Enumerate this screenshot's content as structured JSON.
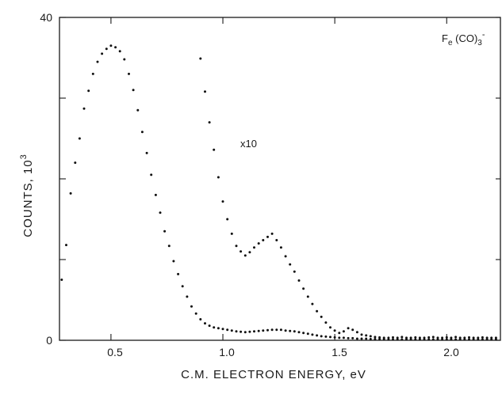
{
  "chart_data": {
    "type": "scatter",
    "xlabel": "C.M. ELECTRON ENERGY, eV",
    "ylabel": "COUNTS, 10",
    "ylabel_superscript": "3",
    "xlim": [
      0.27,
      2.24
    ],
    "ylim": [
      0,
      40
    ],
    "x_tick_labels": [
      "0.5",
      "1.0",
      "1.5",
      "2.0"
    ],
    "x_ticks": [
      0.5,
      1.0,
      1.5,
      2.0
    ],
    "y_tick_labels": [
      "0",
      "40"
    ],
    "y_ticks": [
      0,
      40
    ],
    "y_minor_ticks": [
      10,
      20,
      30
    ],
    "grid": false,
    "annotations": [
      {
        "text": "F",
        "sub": "e",
        "rest": " (CO)",
        "sub2": "3",
        "sup": "-",
        "x": 2.0,
        "y": 38.5
      },
      {
        "text": "x10",
        "x": 0.98,
        "y": 24.6
      }
    ],
    "series": [
      {
        "values": [
          [
            0.28,
            7.5
          ],
          [
            0.3,
            11.8
          ],
          [
            0.32,
            18.2
          ],
          [
            0.34,
            22.0
          ],
          [
            0.36,
            25.0
          ],
          [
            0.38,
            28.7
          ],
          [
            0.4,
            30.9
          ],
          [
            0.42,
            33.0
          ],
          [
            0.44,
            34.5
          ],
          [
            0.46,
            35.5
          ],
          [
            0.48,
            36.1
          ],
          [
            0.5,
            36.5
          ],
          [
            0.52,
            36.3
          ],
          [
            0.54,
            35.8
          ],
          [
            0.56,
            34.8
          ],
          [
            0.58,
            33.0
          ],
          [
            0.6,
            31.0
          ],
          [
            0.62,
            28.5
          ],
          [
            0.64,
            25.8
          ],
          [
            0.66,
            23.2
          ],
          [
            0.68,
            20.5
          ],
          [
            0.7,
            18.0
          ],
          [
            0.72,
            15.8
          ],
          [
            0.74,
            13.5
          ],
          [
            0.76,
            11.7
          ],
          [
            0.78,
            9.8
          ],
          [
            0.8,
            8.2
          ],
          [
            0.82,
            6.7
          ],
          [
            0.84,
            5.4
          ],
          [
            0.86,
            4.2
          ],
          [
            0.88,
            3.3
          ],
          [
            0.9,
            2.6
          ],
          [
            0.92,
            2.1
          ],
          [
            0.94,
            1.8
          ],
          [
            0.96,
            1.6
          ],
          [
            0.98,
            1.5
          ],
          [
            1.0,
            1.4
          ],
          [
            1.02,
            1.3
          ],
          [
            1.04,
            1.2
          ],
          [
            1.06,
            1.1
          ],
          [
            1.08,
            1.05
          ],
          [
            1.1,
            1.0
          ],
          [
            1.12,
            1.05
          ],
          [
            1.14,
            1.1
          ],
          [
            1.16,
            1.15
          ],
          [
            1.18,
            1.2
          ],
          [
            1.2,
            1.25
          ],
          [
            1.22,
            1.3
          ],
          [
            1.24,
            1.3
          ],
          [
            1.26,
            1.3
          ],
          [
            1.28,
            1.2
          ],
          [
            1.3,
            1.15
          ],
          [
            1.32,
            1.1
          ],
          [
            1.34,
            1.0
          ],
          [
            1.36,
            0.9
          ],
          [
            1.38,
            0.8
          ],
          [
            1.4,
            0.7
          ],
          [
            1.42,
            0.6
          ],
          [
            1.44,
            0.5
          ],
          [
            1.46,
            0.45
          ],
          [
            1.48,
            0.4
          ],
          [
            1.5,
            0.35
          ],
          [
            1.52,
            0.3
          ],
          [
            1.54,
            0.3
          ],
          [
            1.56,
            0.25
          ],
          [
            1.58,
            0.25
          ],
          [
            1.6,
            0.2
          ],
          [
            1.62,
            0.2
          ],
          [
            1.64,
            0.2
          ],
          [
            1.66,
            0.15
          ],
          [
            1.68,
            0.15
          ],
          [
            1.7,
            0.15
          ],
          [
            1.72,
            0.15
          ],
          [
            1.74,
            0.1
          ],
          [
            1.76,
            0.1
          ],
          [
            1.78,
            0.1
          ],
          [
            1.8,
            0.1
          ],
          [
            1.82,
            0.1
          ],
          [
            1.84,
            0.1
          ],
          [
            1.86,
            0.1
          ],
          [
            1.88,
            0.1
          ],
          [
            1.9,
            0.1
          ],
          [
            1.92,
            0.1
          ],
          [
            1.94,
            0.1
          ],
          [
            1.96,
            0.1
          ],
          [
            1.98,
            0.1
          ],
          [
            2.0,
            0.1
          ],
          [
            2.02,
            0.1
          ],
          [
            2.04,
            0.1
          ],
          [
            2.06,
            0.1
          ],
          [
            2.08,
            0.1
          ],
          [
            2.1,
            0.1
          ],
          [
            2.12,
            0.1
          ],
          [
            2.14,
            0.1
          ],
          [
            2.16,
            0.1
          ],
          [
            2.18,
            0.1
          ],
          [
            2.2,
            0.1
          ],
          [
            2.22,
            0.1
          ]
        ]
      },
      {
        "values": [
          [
            0.9,
            34.9
          ],
          [
            0.92,
            30.8
          ],
          [
            0.94,
            27.0
          ],
          [
            0.96,
            23.6
          ],
          [
            0.98,
            20.2
          ],
          [
            1.0,
            17.2
          ],
          [
            1.02,
            15.0
          ],
          [
            1.04,
            13.2
          ],
          [
            1.06,
            11.7
          ],
          [
            1.08,
            11.0
          ],
          [
            1.1,
            10.5
          ],
          [
            1.12,
            10.9
          ],
          [
            1.14,
            11.5
          ],
          [
            1.16,
            12.0
          ],
          [
            1.18,
            12.4
          ],
          [
            1.2,
            12.8
          ],
          [
            1.22,
            13.2
          ],
          [
            1.24,
            12.4
          ],
          [
            1.26,
            11.5
          ],
          [
            1.28,
            10.4
          ],
          [
            1.3,
            9.4
          ],
          [
            1.32,
            8.5
          ],
          [
            1.34,
            7.4
          ],
          [
            1.36,
            6.4
          ],
          [
            1.38,
            5.4
          ],
          [
            1.4,
            4.5
          ],
          [
            1.42,
            3.6
          ],
          [
            1.44,
            2.9
          ],
          [
            1.46,
            2.2
          ],
          [
            1.48,
            1.6
          ],
          [
            1.5,
            1.2
          ],
          [
            1.52,
            0.9
          ],
          [
            1.54,
            1.1
          ],
          [
            1.56,
            1.5
          ],
          [
            1.58,
            1.3
          ],
          [
            1.6,
            1.0
          ],
          [
            1.62,
            0.7
          ],
          [
            1.64,
            0.6
          ],
          [
            1.66,
            0.5
          ],
          [
            1.68,
            0.4
          ],
          [
            1.7,
            0.35
          ],
          [
            1.72,
            0.3
          ],
          [
            1.74,
            0.3
          ],
          [
            1.76,
            0.35
          ],
          [
            1.78,
            0.3
          ],
          [
            1.8,
            0.4
          ],
          [
            1.82,
            0.3
          ],
          [
            1.84,
            0.3
          ],
          [
            1.86,
            0.35
          ],
          [
            1.88,
            0.3
          ],
          [
            1.9,
            0.3
          ],
          [
            1.92,
            0.35
          ],
          [
            1.94,
            0.4
          ],
          [
            1.96,
            0.3
          ],
          [
            1.98,
            0.3
          ],
          [
            2.0,
            0.35
          ],
          [
            2.02,
            0.3
          ],
          [
            2.04,
            0.4
          ],
          [
            2.06,
            0.3
          ],
          [
            2.08,
            0.3
          ],
          [
            2.1,
            0.35
          ],
          [
            2.12,
            0.3
          ],
          [
            2.14,
            0.3
          ],
          [
            2.16,
            0.35
          ],
          [
            2.18,
            0.3
          ],
          [
            2.2,
            0.3
          ],
          [
            2.22,
            0.3
          ]
        ]
      }
    ]
  }
}
